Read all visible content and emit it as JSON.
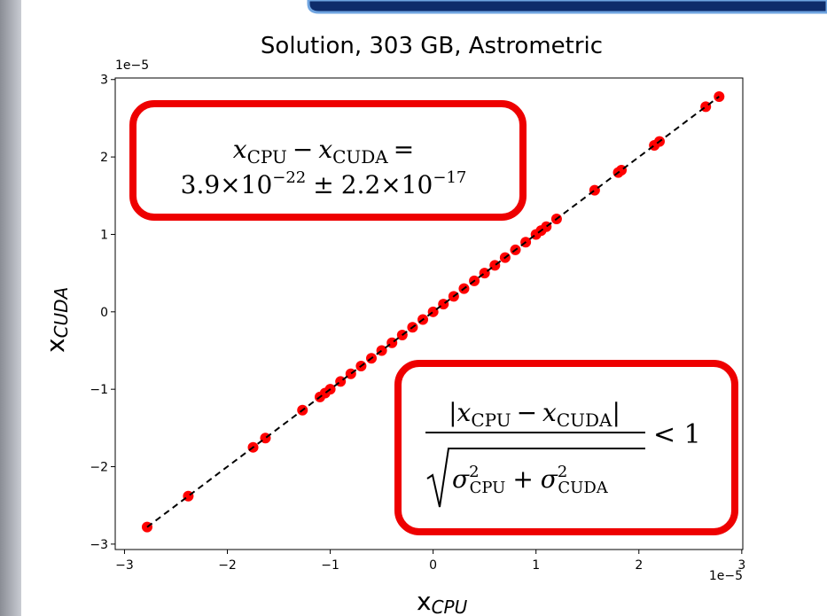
{
  "chart_data": {
    "type": "scatter",
    "title": "Solution, 303 GB, Astrometric",
    "xlabel": {
      "main": "x",
      "sub": "CPU"
    },
    "ylabel": {
      "main": "x",
      "sub": "CUDA"
    },
    "x_offset_label": "1e−5",
    "y_offset_label": "1e−5",
    "color": "#ff0000",
    "line_color": "#000000",
    "xlim": [
      -3.09,
      3.01
    ],
    "ylim": [
      -3.07,
      3.02
    ],
    "xticks": [
      {
        "value": -3,
        "label": "−3"
      },
      {
        "value": -2,
        "label": "−2"
      },
      {
        "value": -1,
        "label": "−1"
      },
      0,
      1,
      2,
      3
    ],
    "yticks": [
      {
        "value": -3,
        "label": "−3"
      },
      {
        "value": -2,
        "label": "−2"
      },
      {
        "value": -1,
        "label": "−1"
      },
      0,
      1,
      2,
      3
    ],
    "x": [
      -2.78,
      -2.38,
      -1.75,
      -1.63,
      -1.27,
      -1.1,
      -1.05,
      -1.0,
      -0.9,
      -0.8,
      -0.7,
      -0.6,
      -0.5,
      -0.4,
      -0.3,
      -0.2,
      -0.1,
      0.0,
      0.1,
      0.2,
      0.3,
      0.4,
      0.5,
      0.6,
      0.7,
      0.8,
      0.9,
      1.0,
      1.05,
      1.1,
      1.2,
      1.57,
      1.8,
      1.83,
      2.15,
      2.2,
      2.65,
      2.78
    ],
    "y": [
      -2.78,
      -2.38,
      -1.75,
      -1.63,
      -1.27,
      -1.1,
      -1.05,
      -1.0,
      -0.9,
      -0.8,
      -0.7,
      -0.6,
      -0.5,
      -0.4,
      -0.3,
      -0.2,
      -0.1,
      0.0,
      0.1,
      0.2,
      0.3,
      0.4,
      0.5,
      0.6,
      0.7,
      0.8,
      0.9,
      1.0,
      1.05,
      1.1,
      1.2,
      1.57,
      1.8,
      1.83,
      2.15,
      2.2,
      2.65,
      2.78
    ],
    "annotations": [
      {
        "line1": [
          "x",
          "CPU",
          "−",
          "x",
          "CUDA",
          "="
        ],
        "line2": [
          "3.9×10",
          "−22",
          "±",
          "2.2×10",
          "−17"
        ]
      },
      {
        "numerator": [
          "|",
          "x",
          "CPU",
          "−",
          "x",
          "CUDA",
          "|"
        ],
        "denominator": [
          "σ",
          "2",
          "CPU",
          "+",
          "σ",
          "2",
          "CUDA"
        ],
        "relation": "< 1"
      }
    ]
  }
}
